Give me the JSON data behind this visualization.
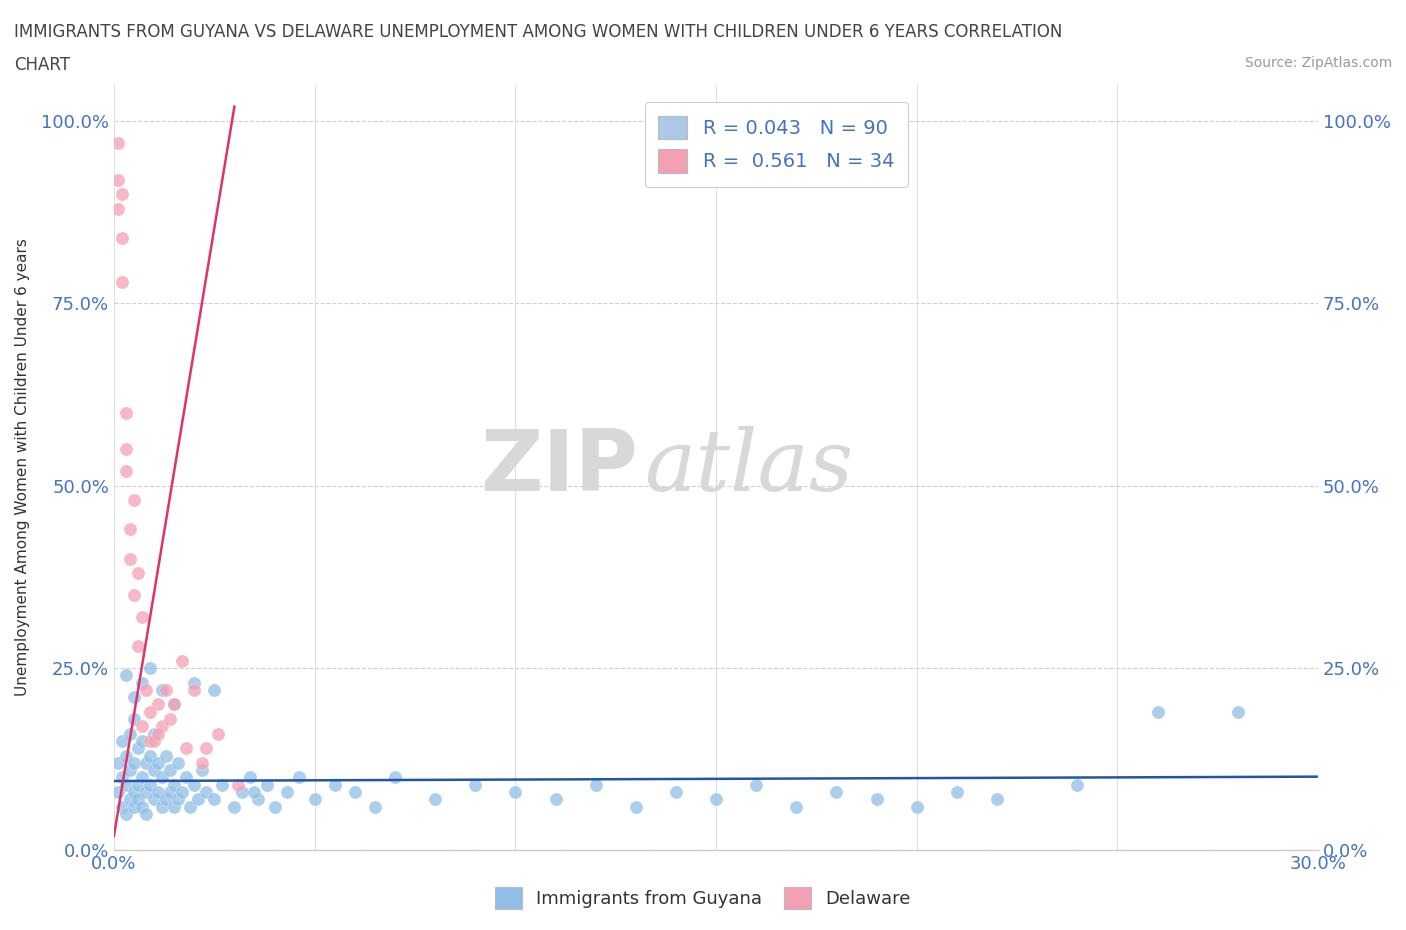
{
  "title_line1": "IMMIGRANTS FROM GUYANA VS DELAWARE UNEMPLOYMENT AMONG WOMEN WITH CHILDREN UNDER 6 YEARS CORRELATION",
  "title_line2": "CHART",
  "source": "Source: ZipAtlas.com",
  "ylabel": "Unemployment Among Women with Children Under 6 years",
  "ytick_vals": [
    0.0,
    0.25,
    0.5,
    0.75,
    1.0
  ],
  "ytick_labels": [
    "0.0%",
    "25.0%",
    "50.0%",
    "75.0%",
    "100.0%"
  ],
  "xtick_vals": [
    0.0,
    0.05,
    0.1,
    0.15,
    0.2,
    0.25,
    0.3
  ],
  "xtick_labels": [
    "0.0%",
    "",
    "",
    "",
    "",
    "",
    "30.0%"
  ],
  "legend_entries": [
    {
      "label": "R = 0.043   N = 90",
      "color": "#adc9e8"
    },
    {
      "label": "R =  0.561   N = 34",
      "color": "#f4a0b4"
    }
  ],
  "legend_bottom": [
    "Immigrants from Guyana",
    "Delaware"
  ],
  "blue_color": "#90bee8",
  "pink_color": "#f4a0b4",
  "blue_line_color": "#2255aa",
  "pink_line_color": "#dd3366",
  "xlim": [
    0.0,
    0.3
  ],
  "ylim": [
    0.0,
    1.05
  ],
  "blue_scatter_x": [
    0.001,
    0.001,
    0.002,
    0.002,
    0.002,
    0.003,
    0.003,
    0.003,
    0.004,
    0.004,
    0.004,
    0.005,
    0.005,
    0.005,
    0.005,
    0.006,
    0.006,
    0.006,
    0.007,
    0.007,
    0.007,
    0.008,
    0.008,
    0.008,
    0.009,
    0.009,
    0.01,
    0.01,
    0.01,
    0.011,
    0.011,
    0.012,
    0.012,
    0.013,
    0.013,
    0.014,
    0.014,
    0.015,
    0.015,
    0.016,
    0.016,
    0.017,
    0.018,
    0.019,
    0.02,
    0.021,
    0.022,
    0.023,
    0.025,
    0.027,
    0.03,
    0.032,
    0.034,
    0.036,
    0.038,
    0.04,
    0.043,
    0.046,
    0.05,
    0.055,
    0.06,
    0.065,
    0.07,
    0.08,
    0.09,
    0.1,
    0.11,
    0.12,
    0.13,
    0.14,
    0.15,
    0.16,
    0.17,
    0.18,
    0.19,
    0.2,
    0.21,
    0.22,
    0.24,
    0.26,
    0.003,
    0.005,
    0.007,
    0.009,
    0.012,
    0.015,
    0.02,
    0.025,
    0.035,
    0.28
  ],
  "blue_scatter_y": [
    0.08,
    0.12,
    0.06,
    0.1,
    0.15,
    0.05,
    0.09,
    0.13,
    0.07,
    0.11,
    0.16,
    0.08,
    0.12,
    0.06,
    0.18,
    0.09,
    0.14,
    0.07,
    0.1,
    0.15,
    0.06,
    0.08,
    0.12,
    0.05,
    0.09,
    0.13,
    0.07,
    0.11,
    0.16,
    0.08,
    0.12,
    0.06,
    0.1,
    0.07,
    0.13,
    0.08,
    0.11,
    0.06,
    0.09,
    0.07,
    0.12,
    0.08,
    0.1,
    0.06,
    0.09,
    0.07,
    0.11,
    0.08,
    0.07,
    0.09,
    0.06,
    0.08,
    0.1,
    0.07,
    0.09,
    0.06,
    0.08,
    0.1,
    0.07,
    0.09,
    0.08,
    0.06,
    0.1,
    0.07,
    0.09,
    0.08,
    0.07,
    0.09,
    0.06,
    0.08,
    0.07,
    0.09,
    0.06,
    0.08,
    0.07,
    0.06,
    0.08,
    0.07,
    0.09,
    0.19,
    0.24,
    0.21,
    0.23,
    0.25,
    0.22,
    0.2,
    0.23,
    0.22,
    0.08,
    0.19
  ],
  "pink_scatter_x": [
    0.001,
    0.001,
    0.002,
    0.002,
    0.003,
    0.003,
    0.004,
    0.005,
    0.006,
    0.007,
    0.008,
    0.009,
    0.01,
    0.011,
    0.012,
    0.013,
    0.015,
    0.017,
    0.02,
    0.023,
    0.001,
    0.002,
    0.003,
    0.004,
    0.005,
    0.006,
    0.007,
    0.009,
    0.011,
    0.014,
    0.018,
    0.022,
    0.026,
    0.031
  ],
  "pink_scatter_y": [
    0.97,
    0.92,
    0.84,
    0.78,
    0.6,
    0.55,
    0.44,
    0.48,
    0.38,
    0.32,
    0.22,
    0.15,
    0.15,
    0.2,
    0.17,
    0.22,
    0.2,
    0.26,
    0.22,
    0.14,
    0.88,
    0.9,
    0.52,
    0.4,
    0.35,
    0.28,
    0.17,
    0.19,
    0.16,
    0.18,
    0.14,
    0.12,
    0.16,
    0.09
  ],
  "pink_line_x0": 0.0,
  "pink_line_y0": 0.02,
  "pink_line_x1": 0.03,
  "pink_line_y1": 1.02,
  "blue_line_y_intercept": 0.095,
  "blue_line_slope": 0.02
}
